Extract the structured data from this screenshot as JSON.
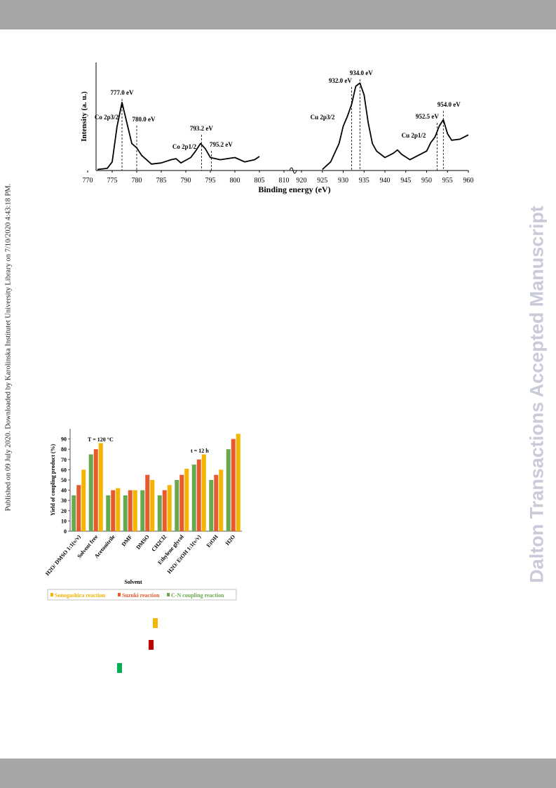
{
  "side_note": "Published on 09 July 2020. Downloaded by Karolinska Institutet University Library on 7/10/2020 4:43:18 PM.",
  "watermark": "Dalton Transactions Accepted Manuscript",
  "chart_data": [
    {
      "type": "line",
      "xlabel": "Binding energy (eV)",
      "ylabel": "Intensity (a. u.)",
      "color": "#000000",
      "xlim": [
        770,
        960
      ],
      "x_break": [
        810,
        920
      ],
      "ylim": [
        0,
        100
      ],
      "xticks": [
        770,
        775,
        780,
        785,
        790,
        795,
        800,
        805,
        810,
        920,
        925,
        930,
        935,
        940,
        945,
        950,
        955,
        960
      ],
      "x": [
        772,
        774,
        775,
        776,
        777,
        778,
        779,
        780,
        781,
        783,
        785,
        787,
        788,
        789,
        791,
        792,
        793,
        794,
        795,
        797,
        800,
        802,
        804,
        805,
        null,
        925,
        927,
        929,
        930,
        931,
        932,
        933,
        934,
        935,
        936,
        937,
        938,
        940,
        942,
        943,
        944,
        946,
        948,
        950,
        951,
        952,
        953,
        954,
        955,
        956,
        958,
        960
      ],
      "values": [
        1,
        2,
        8,
        41,
        63,
        44,
        25,
        21,
        14,
        6,
        7,
        10,
        11,
        7,
        12,
        18,
        25,
        20,
        12,
        10,
        12,
        8,
        10,
        13,
        null,
        1,
        8,
        25,
        41,
        50,
        61,
        78,
        81,
        70,
        44,
        25,
        18,
        12,
        16,
        19,
        15,
        10,
        14,
        18,
        26,
        31,
        41,
        47,
        34,
        28,
        29,
        33
      ],
      "peaks": [
        {
          "value": 777.0,
          "label": "777.0 eV"
        },
        {
          "value": 780.0,
          "label": "780.0 eV"
        },
        {
          "value": 793.2,
          "label": "793.2 eV"
        },
        {
          "value": 795.2,
          "label": "795.2 eV"
        },
        {
          "value": 932.0,
          "label": "932.0 eV"
        },
        {
          "value": 934.0,
          "label": "934.0 eV"
        },
        {
          "value": 952.5,
          "label": "952.5 eV"
        },
        {
          "value": 954.0,
          "label": "954.0 eV"
        }
      ],
      "annotations": [
        "Co 2p3/2",
        "Co 2p1/2",
        "Cu 2p3/2",
        "Cu 2p1/2"
      ]
    },
    {
      "type": "bar",
      "xlabel": "Solvent",
      "ylabel": "Yield of coupling product (%)",
      "categories": [
        "H2O/ DMSO 1:1(v/v)",
        "Solvent free",
        "Acetonitrile",
        "DMF",
        "DMSO",
        "CH2Cl2",
        "Ethylene glycol",
        "H2O/ EtOH 1:1(v/v)",
        "EtOH",
        "H2O"
      ],
      "ylim": [
        0,
        100
      ],
      "yticks": [
        0,
        10,
        20,
        30,
        40,
        50,
        60,
        70,
        80,
        90
      ],
      "series": [
        {
          "name": "Sonogashira reaction",
          "color": "#f4b400",
          "values": [
            60,
            86,
            42,
            40,
            50,
            45,
            61,
            75,
            60,
            95
          ]
        },
        {
          "name": "Suzuki reaction",
          "color": "#e65a2b",
          "values": [
            45,
            80,
            40,
            40,
            55,
            40,
            55,
            70,
            55,
            90
          ]
        },
        {
          "name": "C-N coupling reaction",
          "color": "#6aa84f",
          "values": [
            35,
            75,
            35,
            35,
            40,
            35,
            50,
            65,
            50,
            80
          ]
        }
      ],
      "annotations": [
        "T = 120 °C",
        "t = 12 h"
      ]
    }
  ]
}
